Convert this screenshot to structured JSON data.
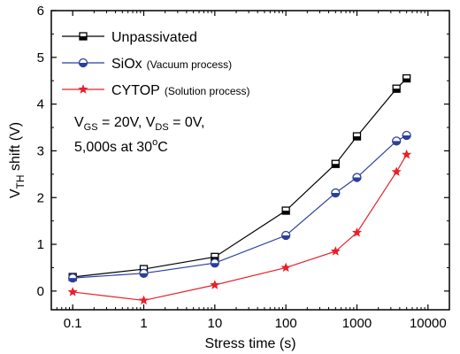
{
  "chart_data": {
    "type": "line",
    "xlabel": "Stress time (s)",
    "ylabel_main": "V",
    "ylabel_sub": "TH",
    "ylabel_rest": " shift (V)",
    "xscale": "log",
    "xlim": [
      0.05,
      20000
    ],
    "ylim": [
      -0.4,
      6
    ],
    "x_ticks": [
      0.1,
      1,
      10,
      100,
      1000,
      10000
    ],
    "x_tick_labels": [
      "0.1",
      "1",
      "10",
      "100",
      "1000",
      "10000"
    ],
    "y_ticks": [
      0,
      1,
      2,
      3,
      4,
      5,
      6
    ],
    "y_tick_labels": [
      "0",
      "1",
      "2",
      "3",
      "4",
      "5",
      "6"
    ],
    "grid": false,
    "legend_position": "top-left",
    "series": [
      {
        "name": "Unpassivated",
        "note": "",
        "color": "#000000",
        "marker": "half-square",
        "x": [
          0.1,
          1,
          10,
          100,
          500,
          1000,
          3600,
          5000
        ],
        "y": [
          0.3,
          0.47,
          0.73,
          1.72,
          2.72,
          3.31,
          4.33,
          4.55
        ]
      },
      {
        "name": "SiOx",
        "note": "(Vacuum process)",
        "color": "#2b3f9e",
        "marker": "half-circle",
        "x": [
          0.1,
          1,
          10,
          100,
          500,
          1000,
          3600,
          5000
        ],
        "y": [
          0.28,
          0.38,
          0.6,
          1.19,
          2.1,
          2.43,
          3.21,
          3.33
        ]
      },
      {
        "name": "CYTOP",
        "note": "(Solution process)",
        "color": "#e8202a",
        "marker": "star",
        "x": [
          0.1,
          1,
          10,
          100,
          500,
          1000,
          3600,
          5000
        ],
        "y": [
          -0.02,
          -0.2,
          0.13,
          0.5,
          0.85,
          1.25,
          2.55,
          2.92
        ]
      }
    ],
    "annotations": [
      {
        "id": "conditions",
        "parts": [
          {
            "text": "V",
            "sub": false
          },
          {
            "text": "GS",
            "sub": true
          },
          {
            "text": " = 20V,  V",
            "sub": false
          },
          {
            "text": "DS",
            "sub": true
          },
          {
            "text": " = 0V,",
            "sub": false
          }
        ]
      },
      {
        "id": "duration",
        "parts": [
          {
            "text": "5,000s at 30",
            "sub": false
          },
          {
            "text": "o",
            "sup": true
          },
          {
            "text": "C",
            "sub": false
          }
        ]
      }
    ]
  }
}
